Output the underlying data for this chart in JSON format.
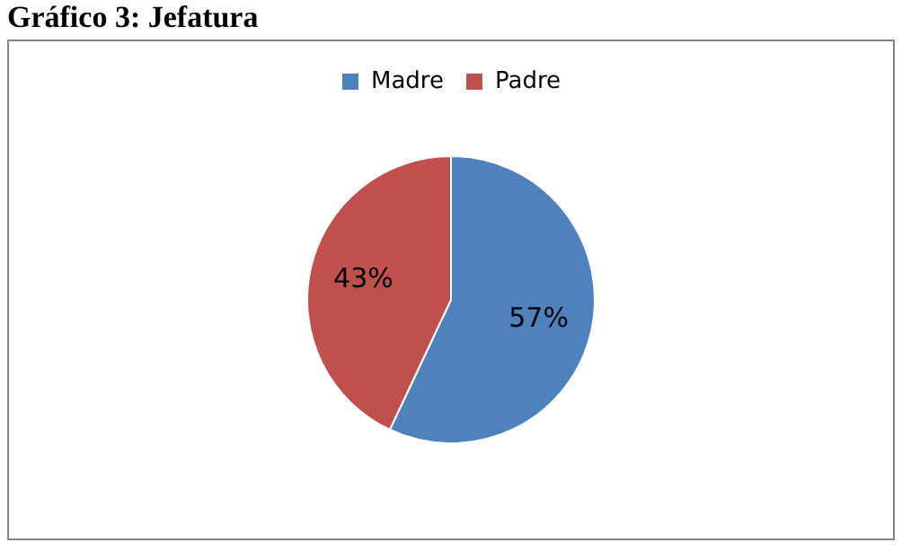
{
  "chart_data": {
    "type": "pie",
    "title": "Gráfico 3: Jefatura",
    "categories": [
      "Madre",
      "Padre"
    ],
    "values": [
      57,
      43
    ],
    "colors": [
      "#4f81bd",
      "#c0504d"
    ],
    "value_labels": [
      "57%",
      "43%"
    ],
    "legend": "top"
  }
}
